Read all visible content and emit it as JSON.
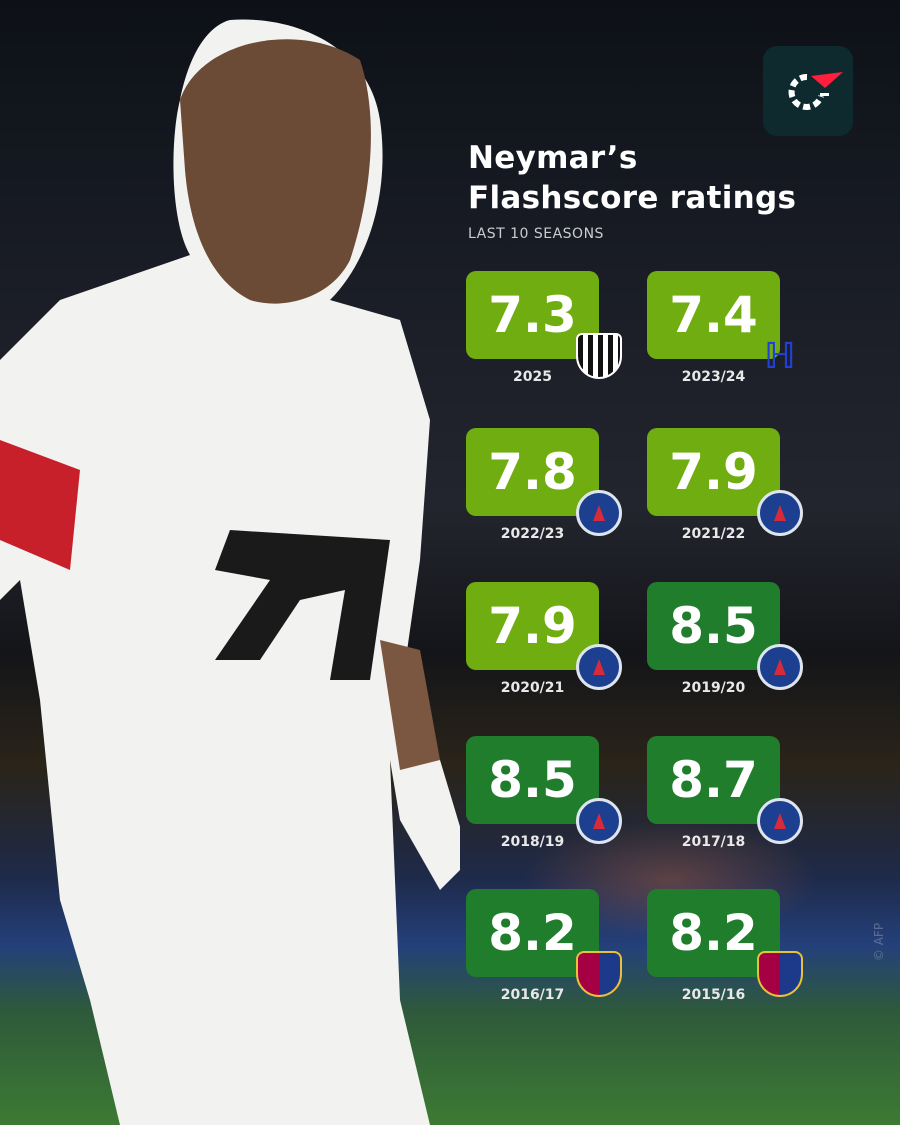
{
  "header": {
    "title_line1": "Neymar’s",
    "title_line2": "Flashscore ratings",
    "subtitle": "LAST 10 SEASONS",
    "logo": "flashscore-logo"
  },
  "watermark": "© AFP",
  "colors": {
    "rating_below_8": "#70ad10",
    "rating_8_plus": "#1f7d2c",
    "logo_bg": "#0f2a2e",
    "logo_accent": "#ff1f3d"
  },
  "chart_data": {
    "type": "table",
    "title": "Neymar’s Flashscore ratings",
    "subtitle": "LAST 10 SEASONS",
    "columns": [
      "season",
      "rating",
      "club"
    ],
    "rows": [
      {
        "season": "2025",
        "rating": 7.3,
        "club": "Santos"
      },
      {
        "season": "2023/24",
        "rating": 7.4,
        "club": "Al Hilal"
      },
      {
        "season": "2022/23",
        "rating": 7.8,
        "club": "PSG"
      },
      {
        "season": "2021/22",
        "rating": 7.9,
        "club": "PSG"
      },
      {
        "season": "2020/21",
        "rating": 7.9,
        "club": "PSG"
      },
      {
        "season": "2019/20",
        "rating": 8.5,
        "club": "PSG"
      },
      {
        "season": "2018/19",
        "rating": 8.5,
        "club": "PSG"
      },
      {
        "season": "2017/18",
        "rating": 8.7,
        "club": "PSG"
      },
      {
        "season": "2016/17",
        "rating": 8.2,
        "club": "Barcelona"
      },
      {
        "season": "2015/16",
        "rating": 8.2,
        "club": "Barcelona"
      }
    ]
  }
}
